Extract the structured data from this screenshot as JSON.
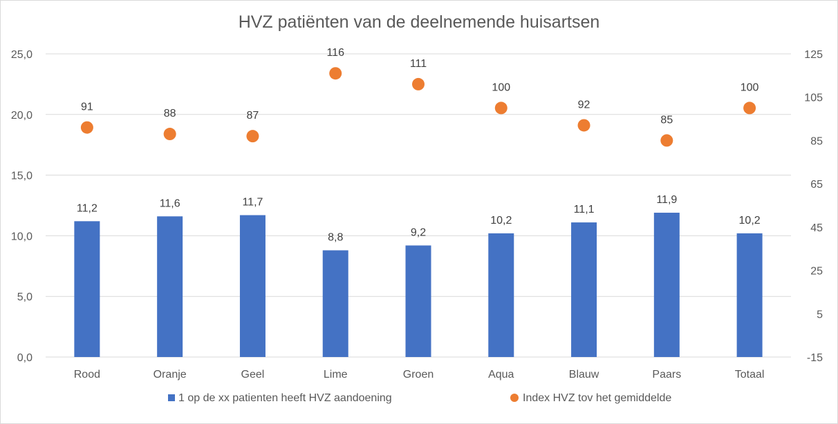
{
  "chart_data": {
    "type": "bar",
    "title": "HVZ patiënten van de deelnemende huisartsen",
    "categories": [
      "Rood",
      "Oranje",
      "Geel",
      "Lime",
      "Groen",
      "Aqua",
      "Blauw",
      "Paars",
      "Totaal"
    ],
    "series": [
      {
        "name": "1 op de xx patienten heeft HVZ aandoening",
        "type": "bar",
        "axis": "primary",
        "values": [
          11.2,
          11.6,
          11.7,
          8.8,
          9.2,
          10.2,
          11.1,
          11.9,
          10.2
        ],
        "labels": [
          "11,2",
          "11,6",
          "11,7",
          "8,8",
          "9,2",
          "10,2",
          "11,1",
          "11,9",
          "10,2"
        ],
        "color": "#4472C4"
      },
      {
        "name": "Index HVZ tov het gemiddelde",
        "type": "scatter",
        "axis": "secondary",
        "values": [
          91,
          88,
          87,
          116,
          111,
          100,
          92,
          85,
          100
        ],
        "labels": [
          "91",
          "88",
          "87",
          "116",
          "111",
          "100",
          "92",
          "85",
          "100"
        ],
        "color": "#ED7D31"
      }
    ],
    "y_primary": {
      "range": [
        0,
        25
      ],
      "ticks": [
        "0,0",
        "5,0",
        "10,0",
        "15,0",
        "20,0",
        "25,0"
      ]
    },
    "y_secondary": {
      "range": [
        -15,
        125
      ],
      "ticks": [
        "-15",
        "5",
        "25",
        "45",
        "65",
        "85",
        "105",
        "125"
      ]
    },
    "grid": true,
    "legend_position": "bottom"
  }
}
